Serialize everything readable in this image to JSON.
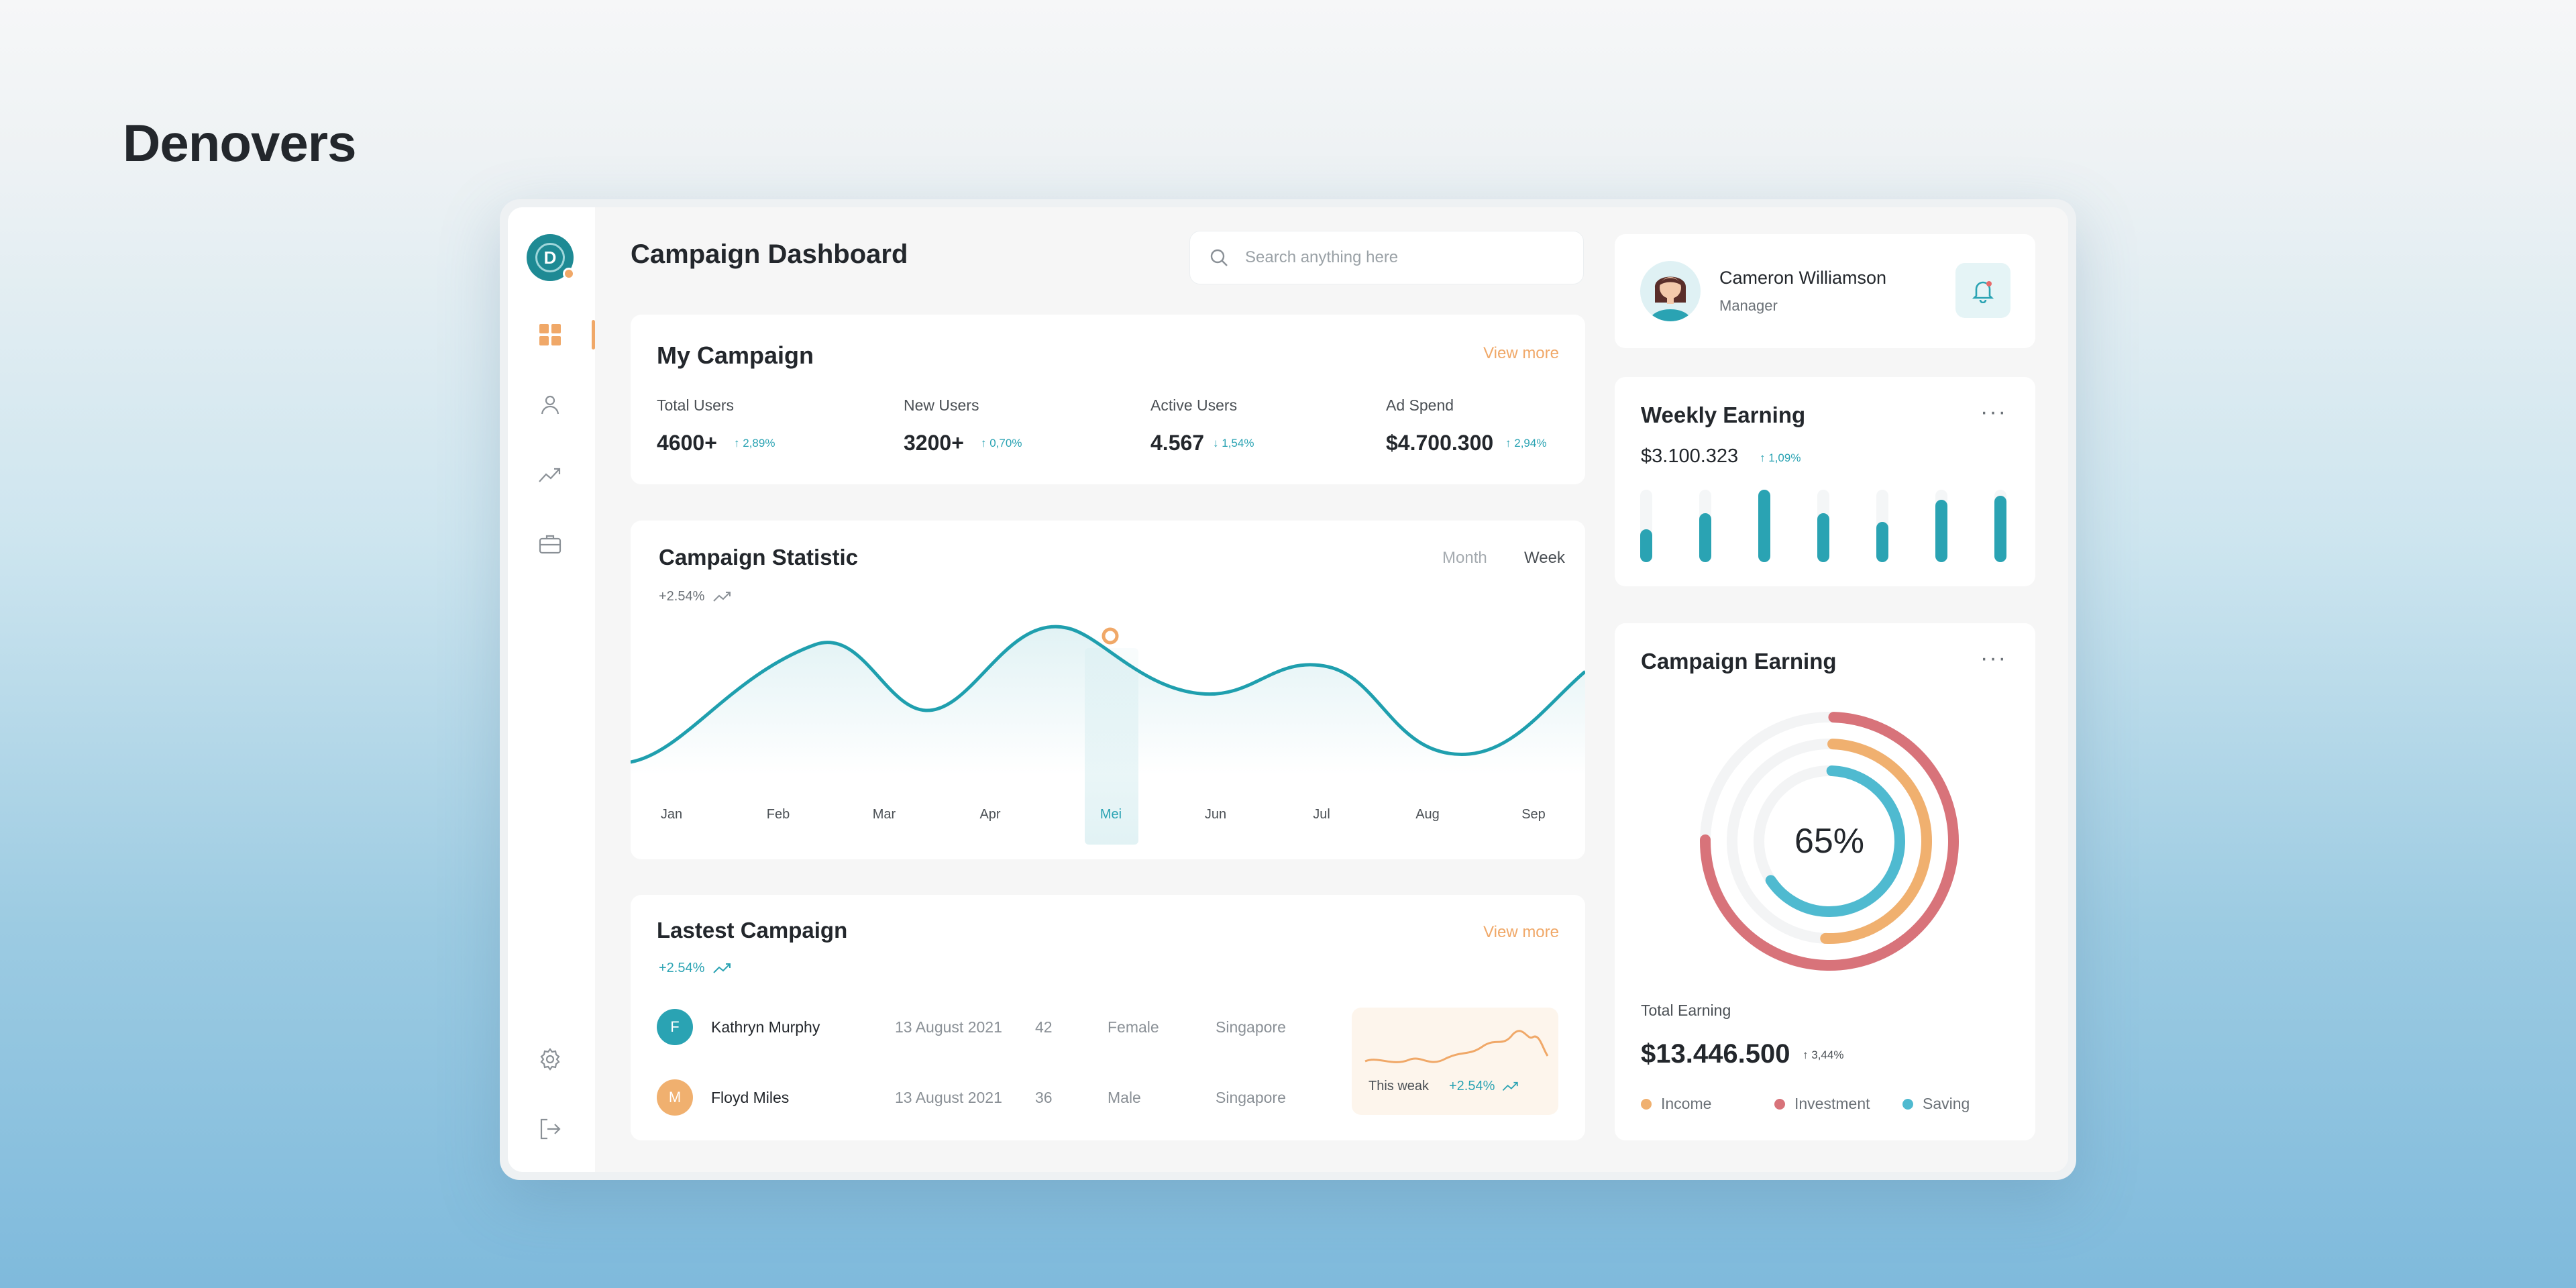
{
  "brand": "Denovers",
  "sidebar": {
    "logo_letter": "D",
    "icons": [
      "dashboard-icon",
      "user-icon",
      "analytics-icon",
      "briefcase-icon",
      "settings-icon",
      "logout-icon"
    ]
  },
  "header": {
    "title": "Campaign Dashboard",
    "search_placeholder": "Search anything here"
  },
  "my_campaign": {
    "title": "My Campaign",
    "view_more": "View more",
    "stats": [
      {
        "label": "Total Users",
        "value": "4600+",
        "change": "2,89%",
        "direction": "up"
      },
      {
        "label": "New Users",
        "value": "3200+",
        "change": "0,70%",
        "direction": "up"
      },
      {
        "label": "Active Users",
        "value": "4.567",
        "change": "1,54%",
        "direction": "down"
      },
      {
        "label": "Ad Spend",
        "value": "$4.700.300",
        "change": "2,94%",
        "direction": "up"
      }
    ]
  },
  "campaign_statistic": {
    "title": "Campaign Statistic",
    "change": "+2.54%",
    "tabs": [
      "Month",
      "Week"
    ],
    "active_tab": "Week",
    "months": [
      "Jan",
      "Feb",
      "Mar",
      "Apr",
      "Mei",
      "Jun",
      "Jul",
      "Aug",
      "Sep"
    ],
    "highlighted_month": "Mei"
  },
  "latest_campaign": {
    "title": "Lastest Campaign",
    "change": "+2.54%",
    "view_more": "View more",
    "rows": [
      {
        "initial": "F",
        "name": "Kathryn Murphy",
        "date": "13 August 2021",
        "age": "42",
        "gender": "Female",
        "country": "Singapore"
      },
      {
        "initial": "M",
        "name": "Floyd Miles",
        "date": "13 August 2021",
        "age": "36",
        "gender": "Male",
        "country": "Singapore"
      }
    ],
    "mini_chart": {
      "label": "This weak",
      "change": "+2.54%"
    }
  },
  "profile": {
    "name": "Cameron Williamson",
    "role": "Manager"
  },
  "weekly_earning": {
    "title": "Weekly Earning",
    "value": "$3.100.323",
    "change": "1,09%",
    "bars": [
      0.45,
      0.68,
      1.0,
      0.68,
      0.56,
      0.86,
      0.92
    ]
  },
  "campaign_earning": {
    "title": "Campaign Earning",
    "percent": "65%",
    "total_label": "Total Earning",
    "total_value": "$13.446.500",
    "total_change": "3,44%",
    "legend": [
      {
        "label": "Income",
        "color": "#f0b06f"
      },
      {
        "label": "Investment",
        "color": "#d8737a"
      },
      {
        "label": "Saving",
        "color": "#4fbad0"
      }
    ]
  },
  "colors": {
    "accent": "#2aa3b3",
    "orange": "#f0a868",
    "red": "#d8737a"
  }
}
